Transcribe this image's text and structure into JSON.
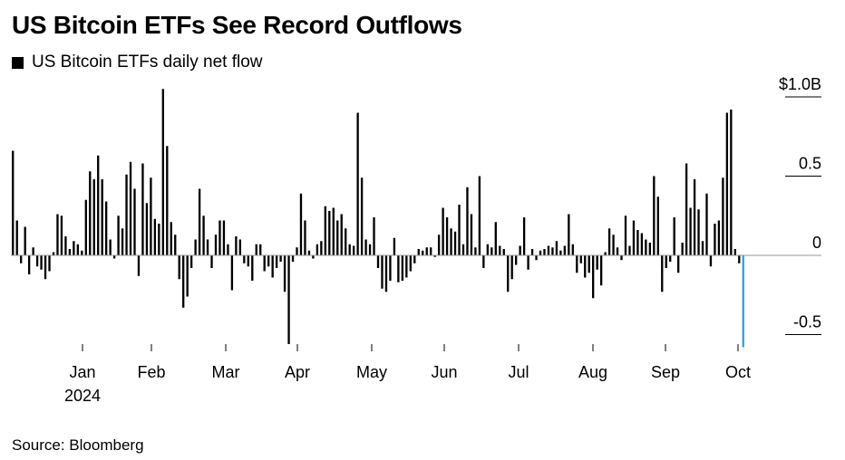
{
  "title": "US Bitcoin ETFs See Record Outflows",
  "legend": {
    "label": "US Bitcoin ETFs daily net flow"
  },
  "source": "Source: Bloomberg",
  "colors": {
    "bar": "#000000",
    "highlight": "#2aa6e0",
    "zero_line": "#999999"
  },
  "chart_data": {
    "type": "bar",
    "title": "US Bitcoin ETFs See Record Outflows",
    "series": [
      {
        "name": "US Bitcoin ETFs daily net flow"
      }
    ],
    "ylim": [
      -0.6,
      1.05
    ],
    "y_ticks": [
      {
        "value": 1.0,
        "label": "$1.0B"
      },
      {
        "value": 0.5,
        "label": "0.5"
      },
      {
        "value": 0,
        "label": "0"
      },
      {
        "value": -0.5,
        "label": "-0.5"
      }
    ],
    "x_ticks": [
      {
        "label": "Jan",
        "sublabel": "2024"
      },
      {
        "label": "Feb"
      },
      {
        "label": "Mar"
      },
      {
        "label": "Apr"
      },
      {
        "label": "May"
      },
      {
        "label": "Jun"
      },
      {
        "label": "Jul"
      },
      {
        "label": "Aug"
      },
      {
        "label": "Sep"
      },
      {
        "label": "Oct"
      }
    ],
    "grid": false,
    "legend_position": "top-left",
    "highlight_last": true,
    "values": [
      0.66,
      0.22,
      -0.05,
      0.18,
      -0.12,
      0.05,
      -0.07,
      -0.09,
      -0.15,
      -0.1,
      0.02,
      0.26,
      0.25,
      0.12,
      0.04,
      0.09,
      0.07,
      0.03,
      0.35,
      0.53,
      0.48,
      0.63,
      0.48,
      0.34,
      0.1,
      -0.02,
      0.25,
      0.17,
      0.51,
      0.59,
      0.42,
      -0.13,
      0.58,
      0.33,
      0.49,
      0.23,
      0.2,
      1.05,
      0.69,
      0.21,
      0.13,
      -0.15,
      -0.33,
      -0.26,
      -0.08,
      0.1,
      0.42,
      0.25,
      0.1,
      -0.08,
      0.13,
      0.22,
      0.22,
      0.07,
      -0.22,
      0.12,
      0.1,
      -0.05,
      -0.07,
      -0.16,
      0.07,
      0.07,
      -0.1,
      -0.07,
      -0.14,
      -0.08,
      -0.04,
      -0.23,
      -0.56,
      -0.04,
      0.05,
      0.39,
      0.22,
      0.03,
      -0.02,
      0.07,
      0.09,
      0.31,
      0.28,
      0.3,
      0.22,
      0.26,
      0.17,
      0.07,
      0.06,
      0.9,
      0.49,
      0.1,
      0.07,
      0.24,
      -0.08,
      -0.21,
      -0.23,
      -0.16,
      0.11,
      -0.17,
      -0.16,
      -0.14,
      -0.1,
      -0.05,
      0.04,
      0.03,
      0.05,
      0.05,
      -0.01,
      0.13,
      0.3,
      0.24,
      0.17,
      0.15,
      0.32,
      0.07,
      0.43,
      0.26,
      0.05,
      0.5,
      -0.08,
      0.07,
      0.05,
      0.21,
      0.06,
      0.04,
      -0.23,
      -0.15,
      -0.06,
      0.06,
      0.24,
      -0.09,
      0.04,
      -0.03,
      0.03,
      0.04,
      0.06,
      0.05,
      0.09,
      0.03,
      0.06,
      0.26,
      0.07,
      -0.11,
      -0.05,
      -0.14,
      -0.11,
      -0.27,
      -0.09,
      -0.19,
      0.02,
      0.17,
      0.13,
      0.05,
      -0.03,
      0.25,
      0.06,
      0.22,
      0.16,
      0.14,
      0.1,
      0.08,
      0.5,
      0.37,
      -0.23,
      -0.08,
      -0.04,
      0.24,
      -0.11,
      0.08,
      0.58,
      0.3,
      0.48,
      0.29,
      0.09,
      0.39,
      -0.07,
      0.2,
      0.22,
      0.49,
      0.9,
      0.92,
      0.04,
      -0.05,
      -0.58
    ]
  }
}
